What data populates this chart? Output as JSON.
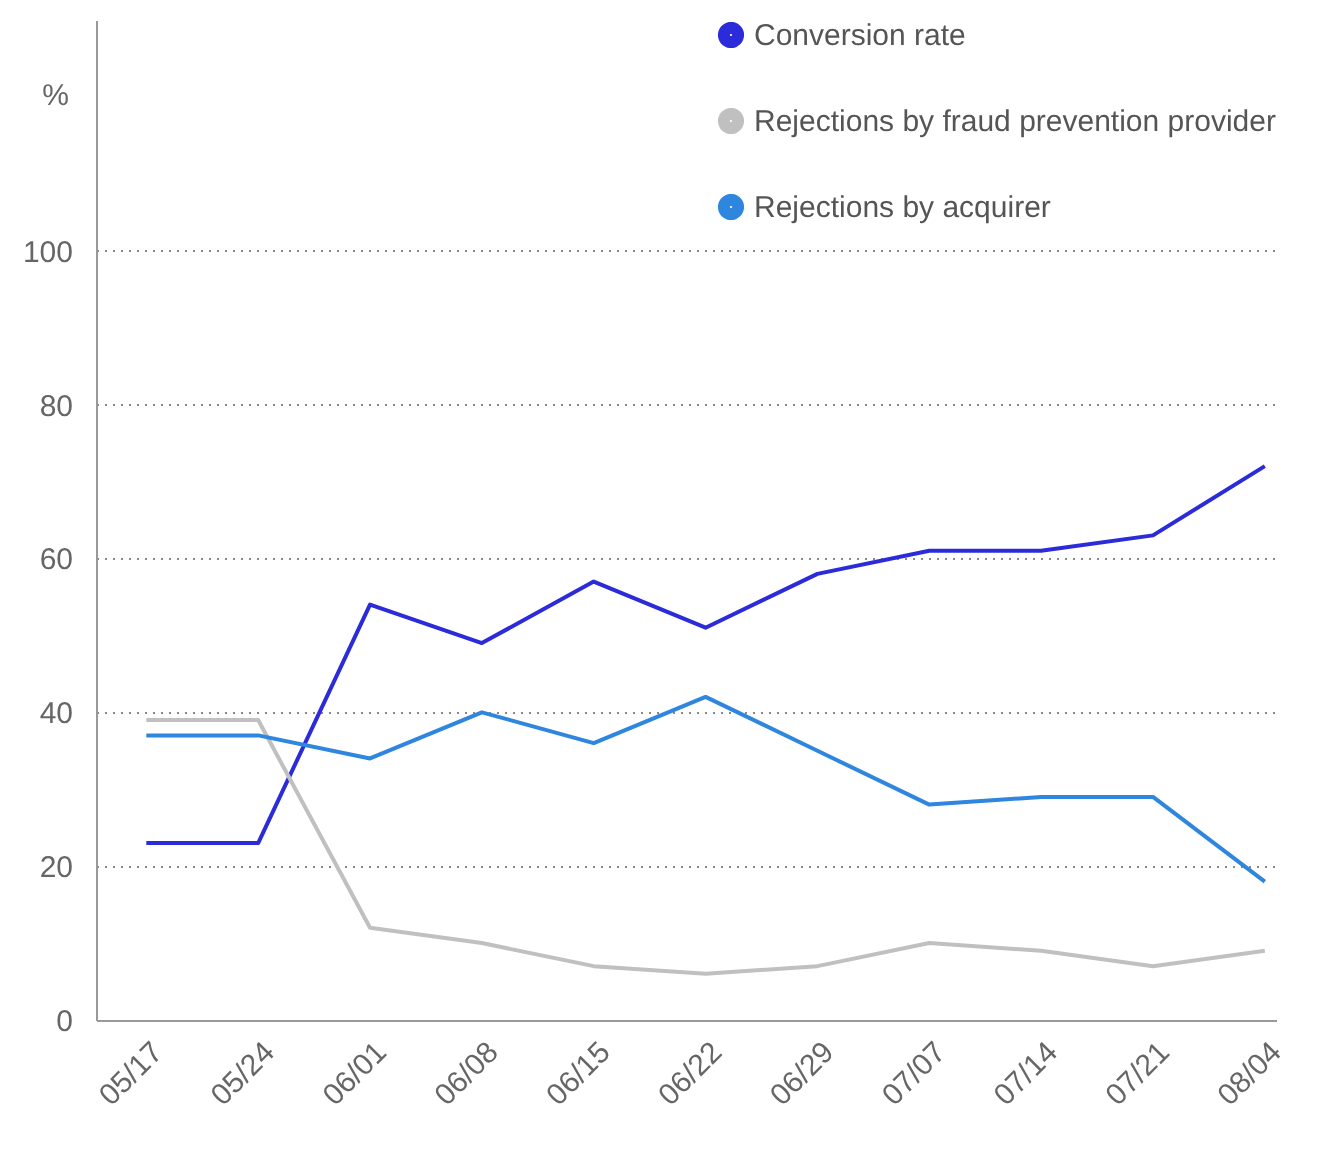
{
  "chart_data": {
    "type": "line",
    "ylabel": "%",
    "categories": [
      "05/17",
      "05/24",
      "06/01",
      "06/08",
      "06/15",
      "06/22",
      "06/29",
      "07/07",
      "07/14",
      "07/21",
      "08/04"
    ],
    "series": [
      {
        "name": "Conversion rate",
        "color": "#2b2bd9",
        "values": [
          23,
          23,
          54,
          49,
          57,
          51,
          58,
          61,
          61,
          63,
          72
        ]
      },
      {
        "name": "Rejections by fraud prevention provider",
        "color": "#c0c0c0",
        "values": [
          39,
          39,
          12,
          10,
          7,
          6,
          7,
          10,
          9,
          7,
          9
        ]
      },
      {
        "name": "Rejections by acquirer",
        "color": "#2e86de",
        "values": [
          37,
          37,
          34,
          40,
          36,
          42,
          35,
          28,
          29,
          29,
          18
        ]
      }
    ],
    "ylim": [
      0,
      130
    ],
    "yticks": [
      0,
      20,
      40,
      60,
      80,
      100
    ],
    "grid": "y",
    "legend": "top right",
    "marker": "none",
    "line_style": "solid"
  }
}
